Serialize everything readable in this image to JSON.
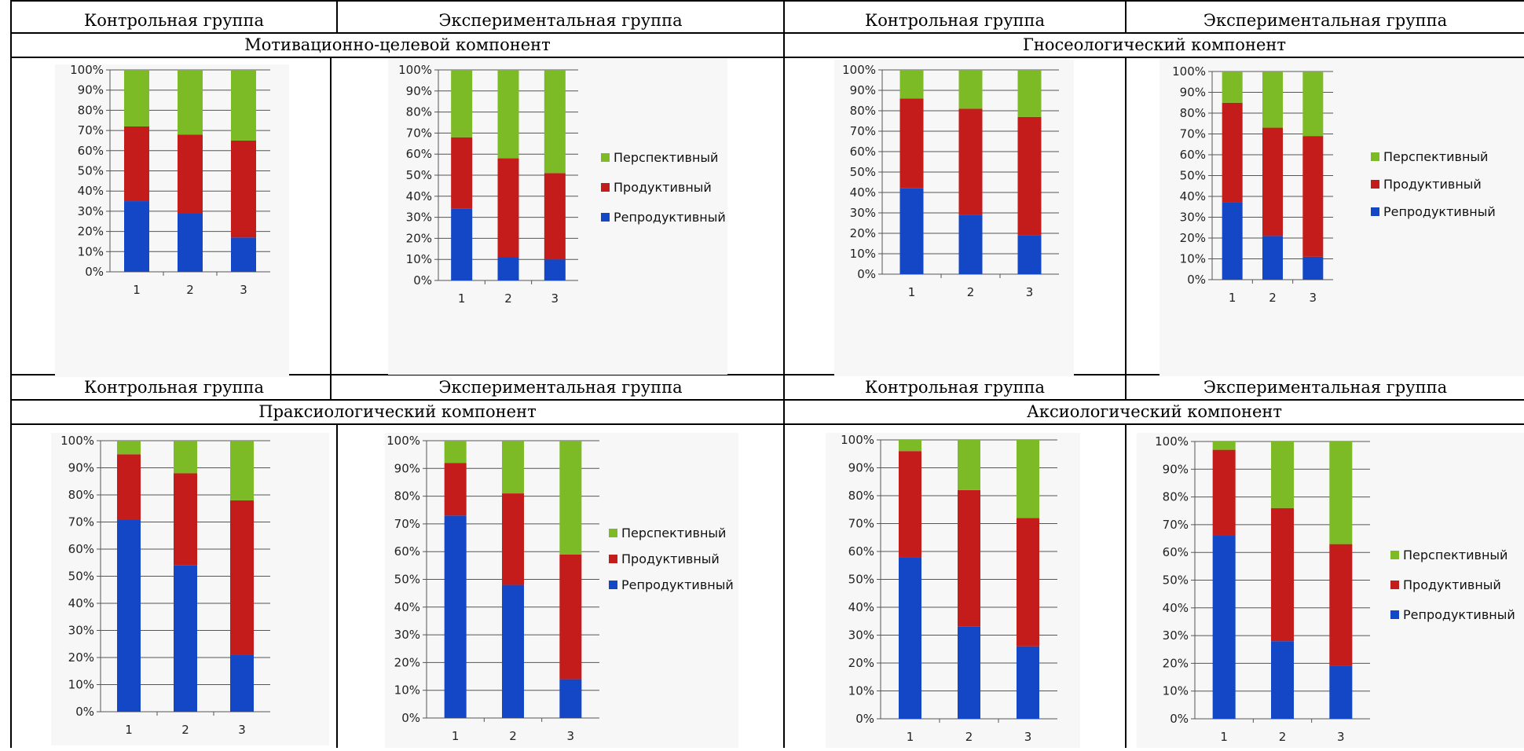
{
  "table": {
    "headers": {
      "control": "Контрольная группа",
      "experimental": "Экспериментальная группа"
    },
    "components": [
      "Мотивационно-целевой компонент",
      "Гносеологический компонент",
      "Праксиологический компонент",
      "Аксиологический компонент"
    ]
  },
  "colors": {
    "perspective": "#7dbb26",
    "productive": "#c41b1b",
    "reproductive": "#1347c6",
    "plot_bg": "#f7f7f7"
  },
  "chart_data": [
    {
      "type": "bar",
      "stacked": true,
      "component": "Мотивационно-целевой компонент",
      "group": "Контрольная группа",
      "categories": [
        "1",
        "2",
        "3"
      ],
      "yticks": [
        "0%",
        "10%",
        "20%",
        "30%",
        "40%",
        "50%",
        "60%",
        "70%",
        "80%",
        "90%",
        "100%"
      ],
      "ylim": [
        0,
        100
      ],
      "grid": true,
      "series": [
        {
          "key": "reproductive",
          "values": [
            35,
            29,
            17
          ]
        },
        {
          "key": "productive",
          "values": [
            37,
            39,
            48
          ]
        },
        {
          "key": "perspective",
          "values": [
            28,
            32,
            35
          ]
        }
      ]
    },
    {
      "type": "bar",
      "stacked": true,
      "component": "Мотивационно-целевой компонент",
      "group": "Экспериментальная группа",
      "categories": [
        "1",
        "2",
        "3"
      ],
      "yticks": [
        "0%",
        "10%",
        "20%",
        "30%",
        "40%",
        "50%",
        "60%",
        "70%",
        "80%",
        "90%",
        "100%"
      ],
      "ylim": [
        0,
        100
      ],
      "grid": true,
      "legend": "right",
      "series": [
        {
          "key": "reproductive",
          "name": "Репродуктивный",
          "values": [
            34,
            11,
            10
          ]
        },
        {
          "key": "productive",
          "name": "Продуктивный",
          "values": [
            34,
            47,
            41
          ]
        },
        {
          "key": "perspective",
          "name": "Перспективный",
          "values": [
            32,
            42,
            49
          ]
        }
      ]
    },
    {
      "type": "bar",
      "stacked": true,
      "component": "Гносеологический компонент",
      "group": "Контрольная группа",
      "categories": [
        "1",
        "2",
        "3"
      ],
      "yticks": [
        "0%",
        "10%",
        "20%",
        "30%",
        "40%",
        "50%",
        "60%",
        "70%",
        "80%",
        "90%",
        "100%"
      ],
      "ylim": [
        0,
        100
      ],
      "grid": true,
      "series": [
        {
          "key": "reproductive",
          "values": [
            42,
            29,
            19
          ]
        },
        {
          "key": "productive",
          "values": [
            44,
            52,
            58
          ]
        },
        {
          "key": "perspective",
          "values": [
            14,
            19,
            23
          ]
        }
      ]
    },
    {
      "type": "bar",
      "stacked": true,
      "component": "Гносеологический компонент",
      "group": "Экспериментальная группа",
      "categories": [
        "1",
        "2",
        "3"
      ],
      "yticks": [
        "0%",
        "10%",
        "20%",
        "30%",
        "40%",
        "50%",
        "60%",
        "70%",
        "80%",
        "90%",
        "100%"
      ],
      "ylim": [
        0,
        100
      ],
      "grid": true,
      "legend": "right",
      "series": [
        {
          "key": "reproductive",
          "name": "Репродуктивный",
          "values": [
            37,
            21,
            11
          ]
        },
        {
          "key": "productive",
          "name": "Продуктивный",
          "values": [
            48,
            52,
            58
          ]
        },
        {
          "key": "perspective",
          "name": "Перспективный",
          "values": [
            15,
            27,
            31
          ]
        }
      ]
    },
    {
      "type": "bar",
      "stacked": true,
      "component": "Праксиологический компонент",
      "group": "Контрольная группа",
      "categories": [
        "1",
        "2",
        "3"
      ],
      "yticks": [
        "0%",
        "10%",
        "20%",
        "30%",
        "40%",
        "50%",
        "60%",
        "70%",
        "80%",
        "90%",
        "100%"
      ],
      "ylim": [
        0,
        100
      ],
      "grid": true,
      "series": [
        {
          "key": "reproductive",
          "values": [
            71,
            54,
            21
          ]
        },
        {
          "key": "productive",
          "values": [
            24,
            34,
            57
          ]
        },
        {
          "key": "perspective",
          "values": [
            5,
            12,
            22
          ]
        }
      ]
    },
    {
      "type": "bar",
      "stacked": true,
      "component": "Праксиологический компонент",
      "group": "Экспериментальная группа",
      "categories": [
        "1",
        "2",
        "3"
      ],
      "yticks": [
        "0%",
        "10%",
        "20%",
        "30%",
        "40%",
        "50%",
        "60%",
        "70%",
        "80%",
        "90%",
        "100%"
      ],
      "ylim": [
        0,
        100
      ],
      "grid": true,
      "legend": "right",
      "series": [
        {
          "key": "reproductive",
          "name": "Репродуктивный",
          "values": [
            73,
            48,
            14
          ]
        },
        {
          "key": "productive",
          "name": "Продуктивный",
          "values": [
            19,
            33,
            45
          ]
        },
        {
          "key": "perspective",
          "name": "Перспективный",
          "values": [
            8,
            19,
            41
          ]
        }
      ]
    },
    {
      "type": "bar",
      "stacked": true,
      "component": "Аксиологический компонент",
      "group": "Контрольная группа",
      "categories": [
        "1",
        "2",
        "3"
      ],
      "yticks": [
        "0%",
        "10%",
        "20%",
        "30%",
        "40%",
        "50%",
        "60%",
        "70%",
        "80%",
        "90%",
        "100%"
      ],
      "ylim": [
        0,
        100
      ],
      "grid": true,
      "series": [
        {
          "key": "reproductive",
          "values": [
            58,
            33,
            26
          ]
        },
        {
          "key": "productive",
          "values": [
            38,
            49,
            46
          ]
        },
        {
          "key": "perspective",
          "values": [
            4,
            18,
            28
          ]
        }
      ]
    },
    {
      "type": "bar",
      "stacked": true,
      "component": "Аксиологический компонент",
      "group": "Экспериментальная группа",
      "categories": [
        "1",
        "2",
        "3"
      ],
      "yticks": [
        "0%",
        "10%",
        "20%",
        "30%",
        "40%",
        "50%",
        "60%",
        "70%",
        "80%",
        "90%",
        "100%"
      ],
      "ylim": [
        0,
        100
      ],
      "grid": true,
      "legend": "right",
      "series": [
        {
          "key": "reproductive",
          "name": "Репродуктивный",
          "values": [
            66,
            28,
            19
          ]
        },
        {
          "key": "productive",
          "name": "Продуктивный",
          "values": [
            31,
            48,
            44
          ]
        },
        {
          "key": "perspective",
          "name": "Перспективный",
          "values": [
            3,
            24,
            37
          ]
        }
      ]
    }
  ]
}
